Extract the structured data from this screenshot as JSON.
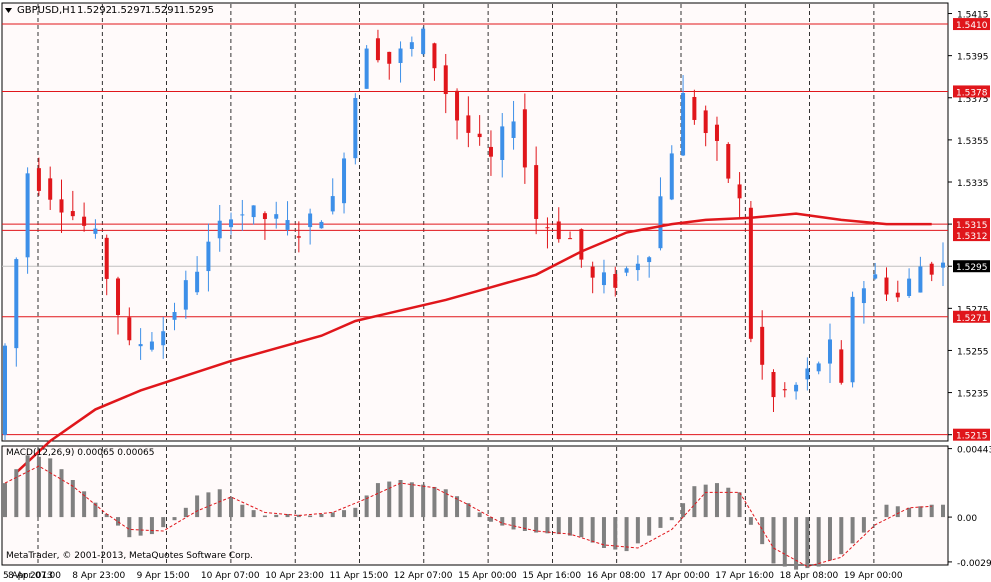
{
  "header": {
    "symbol": "GBPUSD,H1",
    "open": "1.5292",
    "high": "1.5297",
    "low": "1.5291",
    "close": "1.5295",
    "dropdown_icon": "triangle-down-icon"
  },
  "copyright": "MetaTrader, © 2001-2013, MetaQuotes Software Corp.",
  "colors": {
    "background": "#fffafa",
    "bull": "#3d8fe8",
    "bear": "#e0161b",
    "ma": "#e0161b",
    "level": "#e0161b",
    "grid": "#000000",
    "histogram": "#808080",
    "signal": "#e0161b"
  },
  "chart_data": [
    {
      "type": "candlestick",
      "title": "GBPUSD,H1",
      "ylim": [
        1.5212,
        1.542
      ],
      "y_ticks": [
        "1.5415",
        "1.5395",
        "1.5375",
        "1.5355",
        "1.5335",
        "1.5315",
        "1.5295",
        "1.5275",
        "1.5255",
        "1.5235",
        "1.5215"
      ],
      "x_ticks": [
        "5 Apr 2013",
        "8 Apr 07:00",
        "8 Apr 23:00",
        "9 Apr 15:00",
        "10 Apr 07:00",
        "10 Apr 23:00",
        "11 Apr 15:00",
        "12 Apr 07:00",
        "15 Apr 00:00",
        "15 Apr 16:00",
        "16 Apr 08:00",
        "17 Apr 00:00",
        "17 Apr 16:00",
        "18 Apr 08:00",
        "19 Apr 00:00"
      ],
      "current_price": "1.5295",
      "horizontal_levels": [
        "1.5410",
        "1.5378",
        "1.5315",
        "1.5312",
        "1.5271",
        "1.5215"
      ],
      "moving_average": {
        "color": "#e0161b",
        "points": [
          [
            1,
            1.5197
          ],
          [
            4,
            1.5212
          ],
          [
            8,
            1.5227
          ],
          [
            12,
            1.5236
          ],
          [
            16,
            1.5243
          ],
          [
            20,
            1.525
          ],
          [
            24,
            1.5256
          ],
          [
            28,
            1.5262
          ],
          [
            31,
            1.5269
          ],
          [
            35,
            1.5274
          ],
          [
            39,
            1.5279
          ],
          [
            43,
            1.5285
          ],
          [
            47,
            1.5291
          ],
          [
            51,
            1.5302
          ],
          [
            55,
            1.5311
          ],
          [
            59,
            1.5315
          ],
          [
            62,
            1.5317
          ],
          [
            66,
            1.5318
          ],
          [
            70,
            1.532
          ],
          [
            74,
            1.5317
          ],
          [
            78,
            1.5315
          ],
          [
            82,
            1.5315
          ]
        ]
      },
      "candles_anchor": [
        [
          0,
          1.5215
        ],
        [
          3,
          1.534
        ],
        [
          6,
          1.5325
        ],
        [
          9,
          1.5308
        ],
        [
          12,
          1.5256
        ],
        [
          15,
          1.5265
        ],
        [
          18,
          1.5295
        ],
        [
          21,
          1.5322
        ],
        [
          24,
          1.5318
        ],
        [
          27,
          1.5312
        ],
        [
          30,
          1.5325
        ],
        [
          33,
          1.5402
        ],
        [
          35,
          1.5392
        ],
        [
          38,
          1.5404
        ],
        [
          41,
          1.5365
        ],
        [
          44,
          1.5345
        ],
        [
          46,
          1.5368
        ],
        [
          48,
          1.5318
        ],
        [
          51,
          1.5308
        ],
        [
          53,
          1.5288
        ],
        [
          55,
          1.5288
        ],
        [
          58,
          1.5304
        ],
        [
          61,
          1.5375
        ],
        [
          64,
          1.535
        ],
        [
          66,
          1.5325
        ],
        [
          67,
          1.5262
        ],
        [
          69,
          1.5232
        ],
        [
          71,
          1.5238
        ],
        [
          74,
          1.5256
        ],
        [
          75,
          1.5236
        ],
        [
          76,
          1.5282
        ],
        [
          78,
          1.529
        ],
        [
          80,
          1.528
        ],
        [
          82,
          1.5295
        ]
      ]
    },
    {
      "type": "bar",
      "title": "MACD(12,26,9)",
      "label": "MACD(12,26,9) 0.00065 0.00065",
      "value": "0.00065",
      "signal_value": "0.00065",
      "ylim": [
        -0.0031,
        0.0046
      ],
      "y_ticks": [
        "0.00443",
        "0.00",
        "-0.0029"
      ],
      "histogram_anchor": [
        [
          0,
          0.0022
        ],
        [
          2,
          0.004
        ],
        [
          4,
          0.0038
        ],
        [
          6,
          0.0024
        ],
        [
          9,
          0.0002
        ],
        [
          11,
          -0.0013
        ],
        [
          13,
          -0.0011
        ],
        [
          15,
          -0.0002
        ],
        [
          17,
          0.0014
        ],
        [
          19,
          0.0018
        ],
        [
          21,
          0.0008
        ],
        [
          23,
          0.0001
        ],
        [
          25,
          0.0002
        ],
        [
          27,
          0.0001
        ],
        [
          29,
          0.0003
        ],
        [
          31,
          0.0006
        ],
        [
          33,
          0.0022
        ],
        [
          35,
          0.0024
        ],
        [
          37,
          0.0021
        ],
        [
          39,
          0.0018
        ],
        [
          41,
          0.0009
        ],
        [
          43,
          -0.0003
        ],
        [
          45,
          -0.0008
        ],
        [
          47,
          -0.001
        ],
        [
          49,
          -0.0011
        ],
        [
          51,
          -0.0013
        ],
        [
          53,
          -0.002
        ],
        [
          55,
          -0.0022
        ],
        [
          57,
          -0.0012
        ],
        [
          59,
          -0.0002
        ],
        [
          61,
          0.002
        ],
        [
          63,
          0.0022
        ],
        [
          65,
          0.0016
        ],
        [
          66,
          -0.0005
        ],
        [
          68,
          -0.003
        ],
        [
          70,
          -0.0034
        ],
        [
          72,
          -0.0032
        ],
        [
          74,
          -0.0024
        ],
        [
          76,
          -0.001
        ],
        [
          78,
          0.0008
        ],
        [
          80,
          0.0006
        ],
        [
          82,
          0.0008
        ]
      ],
      "signal_anchor": [
        [
          0,
          0.0022
        ],
        [
          3,
          0.0033
        ],
        [
          6,
          0.002
        ],
        [
          9,
          0.0002
        ],
        [
          11,
          -0.0008
        ],
        [
          14,
          -0.0009
        ],
        [
          17,
          0.0004
        ],
        [
          20,
          0.0013
        ],
        [
          23,
          0.0003
        ],
        [
          26,
          0.0001
        ],
        [
          29,
          0.0003
        ],
        [
          32,
          0.0012
        ],
        [
          35,
          0.0022
        ],
        [
          38,
          0.0019
        ],
        [
          41,
          0.0008
        ],
        [
          44,
          -0.0004
        ],
        [
          47,
          -0.0009
        ],
        [
          50,
          -0.0011
        ],
        [
          53,
          -0.0018
        ],
        [
          56,
          -0.002
        ],
        [
          59,
          -0.0008
        ],
        [
          62,
          0.0016
        ],
        [
          65,
          0.0016
        ],
        [
          68,
          -0.002
        ],
        [
          71,
          -0.0032
        ],
        [
          74,
          -0.0026
        ],
        [
          77,
          -0.0005
        ],
        [
          80,
          0.0006
        ],
        [
          82,
          0.0007
        ]
      ]
    }
  ]
}
